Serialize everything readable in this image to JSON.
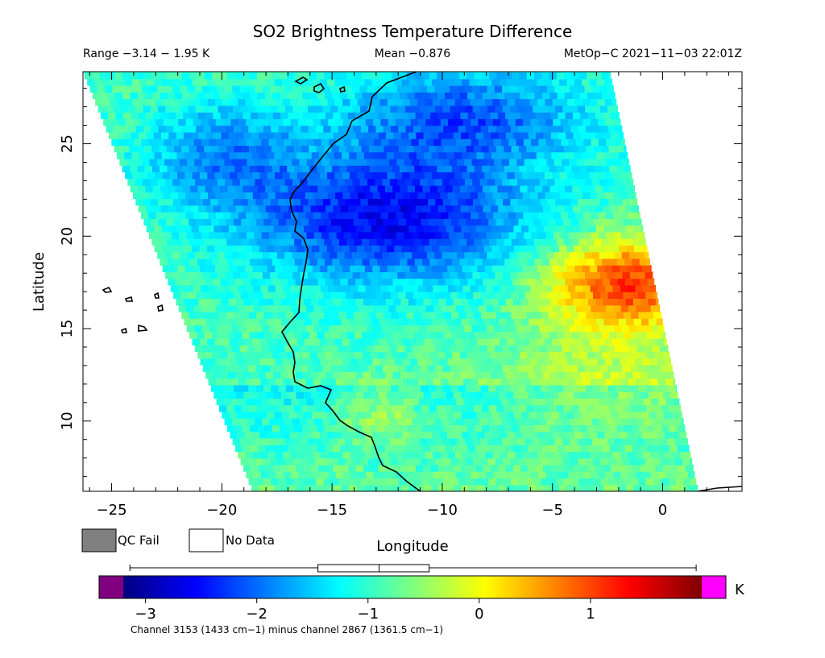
{
  "header": {
    "title": "SO2 Brightness Temperature Difference",
    "range": "Range −3.14 − 1.95 K",
    "mean": "Mean −0.876",
    "satellite": "MetOp−C 2021−11−03 22:01Z"
  },
  "legend": {
    "qc_fail_label": "QC Fail",
    "qc_fail_color": "#808080",
    "no_data_label": "No Data",
    "no_data_color": "#ffffff"
  },
  "colorbar": {
    "unit": "K",
    "underflow_color": "#800080",
    "overflow_color": "#ff00ff",
    "min": -3.2,
    "max": 2.0,
    "ticks": [
      "−3",
      "−2",
      "−1",
      "0",
      "1"
    ],
    "tick_values": [
      -3,
      -2,
      -1,
      0,
      1
    ],
    "boxplot": {
      "whisker_low": -3.14,
      "q1": -1.45,
      "median": -0.9,
      "q3": -0.45,
      "whisker_high": 1.95
    },
    "footnote": "Channel 3153 (1433 cm−1) minus channel 2867 (1361.5 cm−1)"
  },
  "chart_data": {
    "type": "heatmap",
    "title": "SO2 Brightness Temperature Difference",
    "xlabel": "Longitude",
    "ylabel": "Latitude",
    "xlim": [
      -26.3,
      3.6
    ],
    "ylim": [
      6.2,
      28.9
    ],
    "x_ticks": [
      -25,
      -20,
      -15,
      -10,
      -5,
      0
    ],
    "x_tick_labels": [
      "−25",
      "−20",
      "−15",
      "−10",
      "−5",
      "0"
    ],
    "y_ticks": [
      10,
      15,
      20,
      25
    ],
    "y_tick_labels": [
      "10",
      "15",
      "20",
      "25"
    ],
    "value_range": [
      -3.14,
      1.95
    ],
    "mean": -0.876,
    "units": "K",
    "swath_edges": {
      "west": [
        [
          -26.3,
          28.9
        ],
        [
          -18.6,
          6.2
        ]
      ],
      "east": [
        [
          -2.4,
          28.9
        ],
        [
          1.6,
          6.2
        ]
      ]
    },
    "field_features": [
      {
        "lon": -12.5,
        "lat": 21.0,
        "value": -2.7
      },
      {
        "lon": -9.0,
        "lat": 26.0,
        "value": -2.4
      },
      {
        "lon": -2.0,
        "lat": 17.5,
        "value": 1.1
      },
      {
        "lon": -13.0,
        "lat": 10.5,
        "value": 0.6
      }
    ],
    "grid": false
  }
}
